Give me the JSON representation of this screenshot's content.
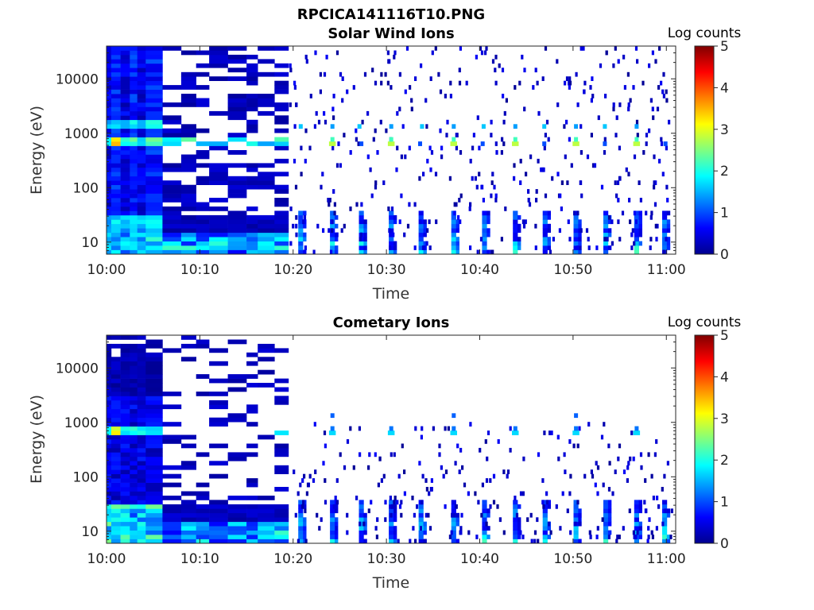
{
  "figure_title": "RPCICA141116T10.PNG",
  "chart_data": [
    {
      "type": "heatmap",
      "title": "Solar Wind Ions",
      "xlabel": "Time",
      "ylabel": "Energy (eV)",
      "x_ticks": [
        "10:00",
        "10:10",
        "10:20",
        "10:30",
        "10:40",
        "10:50",
        "11:00"
      ],
      "y_scale": "log",
      "y_ticks": [
        "10",
        "100",
        "1000",
        "10000"
      ],
      "ylim": [
        6,
        40000
      ],
      "colorbar": {
        "label": "Log counts",
        "range": [
          0,
          5
        ],
        "ticks": [
          "0",
          "1",
          "2",
          "3",
          "4",
          "5"
        ],
        "colormap": "jet"
      },
      "features": {
        "dense_block_end_minute": 6,
        "sparse_block_end_minute": 19.5,
        "low_energy_bursts_minutes": [
          20.8,
          24.2,
          27.3,
          30.5,
          33.7,
          37.2,
          40.5,
          43.8,
          47.0,
          50.3,
          53.5,
          56.8,
          59.8
        ],
        "beam_peak_minutes": [
          24.2,
          30.5,
          37.2,
          43.8,
          50.3,
          56.8
        ],
        "beam_energy_ev": 700,
        "secondary_beam_energy_ev": 1450
      }
    },
    {
      "type": "heatmap",
      "title": "Cometary Ions",
      "xlabel": "Time",
      "ylabel": "Energy (eV)",
      "x_ticks": [
        "10:00",
        "10:10",
        "10:20",
        "10:30",
        "10:40",
        "10:50",
        "11:00"
      ],
      "y_scale": "log",
      "y_ticks": [
        "10",
        "100",
        "1000",
        "10000"
      ],
      "ylim": [
        6,
        40000
      ],
      "colorbar": {
        "label": "Log counts",
        "range": [
          0,
          5
        ],
        "ticks": [
          "0",
          "1",
          "2",
          "3",
          "4",
          "5"
        ],
        "colormap": "jet"
      },
      "features": {
        "dense_block_end_minute": 6,
        "sparse_block_end_minute": 19.5,
        "low_energy_bursts_minutes": [
          20.8,
          24.2,
          27.3,
          30.5,
          33.7,
          37.2,
          40.5,
          43.8,
          47.0,
          50.3,
          53.5,
          56.8,
          59.8
        ],
        "beam_peak_minutes": [
          24.2,
          30.5,
          37.2,
          43.8,
          50.3,
          56.8
        ],
        "beam_energy_ev": 700,
        "secondary_beam_energy_ev": 1450
      }
    }
  ]
}
